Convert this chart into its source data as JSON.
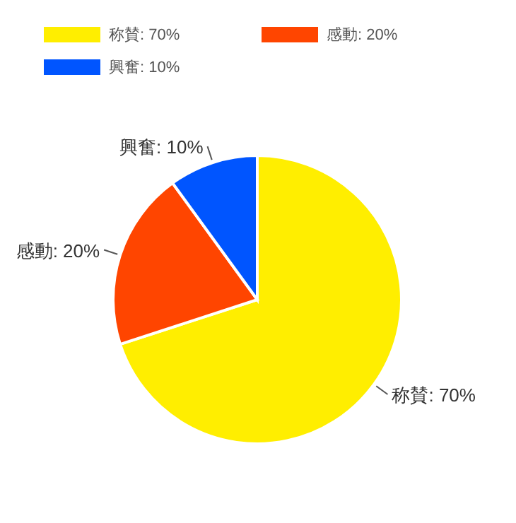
{
  "chart_data": {
    "type": "pie",
    "categories": [
      "称賛: 70%",
      "感動: 20%",
      "興奮: 10%"
    ],
    "values": [
      70,
      20,
      10
    ],
    "colors": [
      "#ffee00",
      "#ff4500",
      "#0055ff"
    ],
    "legend": "top"
  }
}
